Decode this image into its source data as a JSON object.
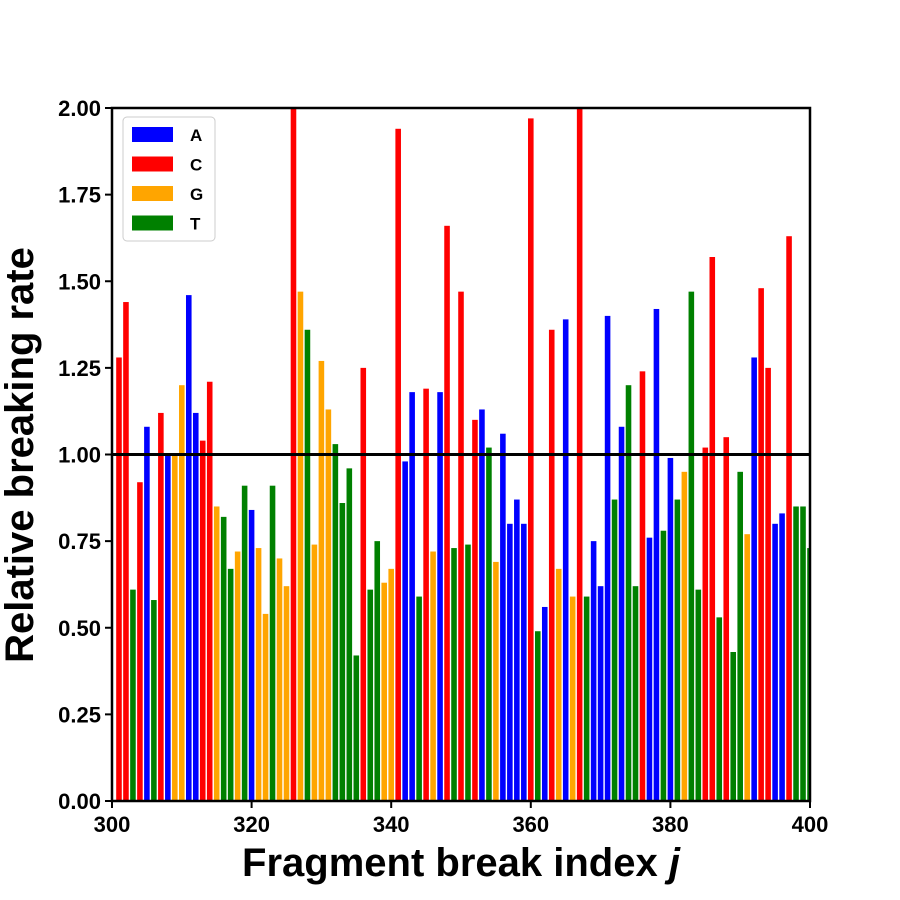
{
  "chart_data": {
    "type": "bar",
    "xlabel": "Fragment break index ",
    "xlabel_var": "j",
    "ylabel": "Relative breaking rate",
    "xlim": [
      300,
      400
    ],
    "ylim": [
      0,
      2.0
    ],
    "x_ticks": [
      "300",
      "320",
      "340",
      "360",
      "380",
      "400"
    ],
    "y_ticks": [
      "0.00",
      "0.25",
      "0.50",
      "0.75",
      "1.00",
      "1.25",
      "1.50",
      "1.75",
      "2.00"
    ],
    "reference_line": 1.0,
    "legend_position": "top-left",
    "legend": [
      {
        "key": "A",
        "label": "A",
        "color": "#0000ff"
      },
      {
        "key": "C",
        "label": "C",
        "color": "#ff0000"
      },
      {
        "key": "G",
        "label": "G",
        "color": "#ffa500"
      },
      {
        "key": "T",
        "label": "T",
        "color": "#008000"
      }
    ],
    "bars": [
      {
        "x": 301,
        "base": "C",
        "value": 1.28
      },
      {
        "x": 302,
        "base": "C",
        "value": 1.44
      },
      {
        "x": 303,
        "base": "T",
        "value": 0.61
      },
      {
        "x": 304,
        "base": "C",
        "value": 0.92
      },
      {
        "x": 305,
        "base": "A",
        "value": 1.08
      },
      {
        "x": 306,
        "base": "T",
        "value": 0.58
      },
      {
        "x": 307,
        "base": "C",
        "value": 1.12
      },
      {
        "x": 308,
        "base": "A",
        "value": 1.0
      },
      {
        "x": 309,
        "base": "G",
        "value": 1.0
      },
      {
        "x": 310,
        "base": "G",
        "value": 1.2
      },
      {
        "x": 311,
        "base": "A",
        "value": 1.46
      },
      {
        "x": 312,
        "base": "A",
        "value": 1.12
      },
      {
        "x": 313,
        "base": "C",
        "value": 1.04
      },
      {
        "x": 314,
        "base": "C",
        "value": 1.21
      },
      {
        "x": 315,
        "base": "G",
        "value": 0.85
      },
      {
        "x": 316,
        "base": "T",
        "value": 0.82
      },
      {
        "x": 317,
        "base": "T",
        "value": 0.67
      },
      {
        "x": 318,
        "base": "G",
        "value": 0.72
      },
      {
        "x": 319,
        "base": "T",
        "value": 0.91
      },
      {
        "x": 320,
        "base": "A",
        "value": 0.84
      },
      {
        "x": 321,
        "base": "G",
        "value": 0.73
      },
      {
        "x": 322,
        "base": "G",
        "value": 0.54
      },
      {
        "x": 323,
        "base": "T",
        "value": 0.91
      },
      {
        "x": 324,
        "base": "G",
        "value": 0.7
      },
      {
        "x": 325,
        "base": "G",
        "value": 0.62
      },
      {
        "x": 326,
        "base": "C",
        "value": 2.0
      },
      {
        "x": 327,
        "base": "G",
        "value": 1.47
      },
      {
        "x": 328,
        "base": "T",
        "value": 1.36
      },
      {
        "x": 329,
        "base": "G",
        "value": 0.74
      },
      {
        "x": 330,
        "base": "G",
        "value": 1.27
      },
      {
        "x": 331,
        "base": "G",
        "value": 1.13
      },
      {
        "x": 332,
        "base": "T",
        "value": 1.03
      },
      {
        "x": 333,
        "base": "T",
        "value": 0.86
      },
      {
        "x": 334,
        "base": "T",
        "value": 0.96
      },
      {
        "x": 335,
        "base": "T",
        "value": 0.42
      },
      {
        "x": 336,
        "base": "C",
        "value": 1.25
      },
      {
        "x": 337,
        "base": "T",
        "value": 0.61
      },
      {
        "x": 338,
        "base": "T",
        "value": 0.75
      },
      {
        "x": 339,
        "base": "G",
        "value": 0.63
      },
      {
        "x": 340,
        "base": "G",
        "value": 0.67
      },
      {
        "x": 341,
        "base": "C",
        "value": 1.94
      },
      {
        "x": 342,
        "base": "A",
        "value": 0.98
      },
      {
        "x": 343,
        "base": "A",
        "value": 1.18
      },
      {
        "x": 344,
        "base": "T",
        "value": 0.59
      },
      {
        "x": 345,
        "base": "C",
        "value": 1.19
      },
      {
        "x": 346,
        "base": "G",
        "value": 0.72
      },
      {
        "x": 347,
        "base": "A",
        "value": 1.18
      },
      {
        "x": 348,
        "base": "C",
        "value": 1.66
      },
      {
        "x": 349,
        "base": "T",
        "value": 0.73
      },
      {
        "x": 350,
        "base": "C",
        "value": 1.47
      },
      {
        "x": 351,
        "base": "T",
        "value": 0.74
      },
      {
        "x": 352,
        "base": "C",
        "value": 1.1
      },
      {
        "x": 353,
        "base": "A",
        "value": 1.13
      },
      {
        "x": 354,
        "base": "T",
        "value": 1.02
      },
      {
        "x": 355,
        "base": "G",
        "value": 0.69
      },
      {
        "x": 356,
        "base": "A",
        "value": 1.06
      },
      {
        "x": 357,
        "base": "A",
        "value": 0.8
      },
      {
        "x": 358,
        "base": "A",
        "value": 0.87
      },
      {
        "x": 359,
        "base": "A",
        "value": 0.8
      },
      {
        "x": 360,
        "base": "C",
        "value": 1.97
      },
      {
        "x": 361,
        "base": "T",
        "value": 0.49
      },
      {
        "x": 362,
        "base": "A",
        "value": 0.56
      },
      {
        "x": 363,
        "base": "C",
        "value": 1.36
      },
      {
        "x": 364,
        "base": "G",
        "value": 0.67
      },
      {
        "x": 365,
        "base": "A",
        "value": 1.39
      },
      {
        "x": 366,
        "base": "G",
        "value": 0.59
      },
      {
        "x": 367,
        "base": "C",
        "value": 2.0
      },
      {
        "x": 368,
        "base": "T",
        "value": 0.59
      },
      {
        "x": 369,
        "base": "A",
        "value": 0.75
      },
      {
        "x": 370,
        "base": "A",
        "value": 0.62
      },
      {
        "x": 371,
        "base": "A",
        "value": 1.4
      },
      {
        "x": 372,
        "base": "T",
        "value": 0.87
      },
      {
        "x": 373,
        "base": "A",
        "value": 1.08
      },
      {
        "x": 374,
        "base": "T",
        "value": 1.2
      },
      {
        "x": 375,
        "base": "T",
        "value": 0.62
      },
      {
        "x": 376,
        "base": "C",
        "value": 1.24
      },
      {
        "x": 377,
        "base": "A",
        "value": 0.76
      },
      {
        "x": 378,
        "base": "A",
        "value": 1.42
      },
      {
        "x": 379,
        "base": "T",
        "value": 0.78
      },
      {
        "x": 380,
        "base": "A",
        "value": 0.99
      },
      {
        "x": 381,
        "base": "T",
        "value": 0.87
      },
      {
        "x": 382,
        "base": "G",
        "value": 0.95
      },
      {
        "x": 383,
        "base": "T",
        "value": 1.47
      },
      {
        "x": 384,
        "base": "T",
        "value": 0.61
      },
      {
        "x": 385,
        "base": "C",
        "value": 1.02
      },
      {
        "x": 386,
        "base": "C",
        "value": 1.57
      },
      {
        "x": 387,
        "base": "T",
        "value": 0.53
      },
      {
        "x": 388,
        "base": "C",
        "value": 1.05
      },
      {
        "x": 389,
        "base": "T",
        "value": 0.43
      },
      {
        "x": 390,
        "base": "T",
        "value": 0.95
      },
      {
        "x": 391,
        "base": "G",
        "value": 0.77
      },
      {
        "x": 392,
        "base": "A",
        "value": 1.28
      },
      {
        "x": 393,
        "base": "C",
        "value": 1.48
      },
      {
        "x": 394,
        "base": "C",
        "value": 1.25
      },
      {
        "x": 395,
        "base": "A",
        "value": 0.8
      },
      {
        "x": 396,
        "base": "A",
        "value": 0.83
      },
      {
        "x": 397,
        "base": "C",
        "value": 1.63
      },
      {
        "x": 398,
        "base": "T",
        "value": 0.85
      },
      {
        "x": 399,
        "base": "T",
        "value": 0.85
      },
      {
        "x": 400,
        "base": "T",
        "value": 0.73
      }
    ]
  }
}
